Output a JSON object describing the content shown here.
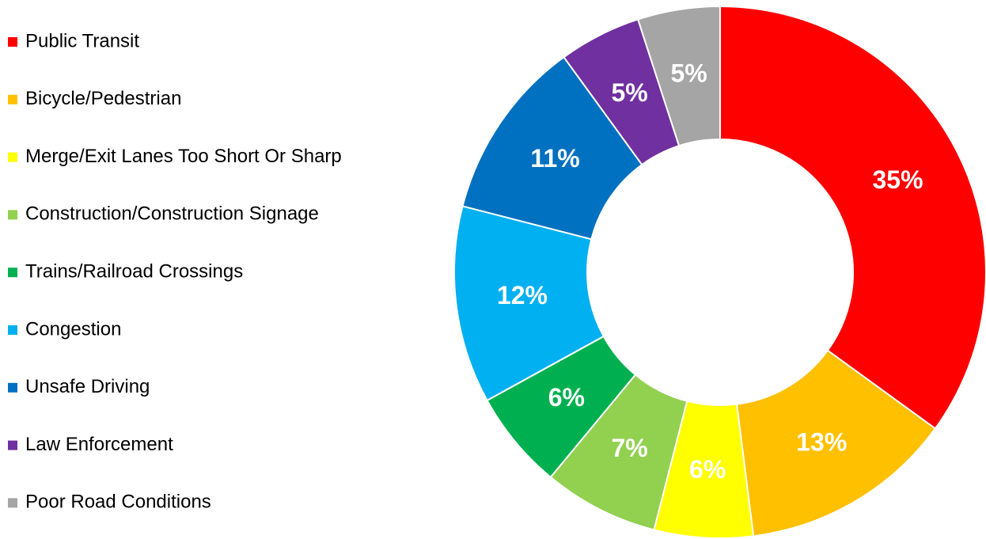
{
  "chart_data": {
    "type": "pie",
    "donut": true,
    "categories": [
      "Public Transit",
      "Bicycle/Pedestrian",
      "Merge/Exit Lanes Too Short Or Sharp",
      "Construction/Construction Signage",
      "Trains/Railroad Crossings",
      "Congestion",
      "Unsafe Driving",
      "Law Enforcement",
      "Poor Road Conditions"
    ],
    "values": [
      35,
      13,
      6,
      7,
      6,
      12,
      11,
      5,
      5
    ],
    "value_labels": [
      "35%",
      "13%",
      "6%",
      "7%",
      "6%",
      "12%",
      "11%",
      "5%",
      "5%"
    ],
    "colors": [
      "#ff0000",
      "#ffc000",
      "#ffff00",
      "#92d050",
      "#00b050",
      "#00b0f0",
      "#0070c0",
      "#7030a0",
      "#a5a5a5"
    ],
    "legend": "left"
  }
}
